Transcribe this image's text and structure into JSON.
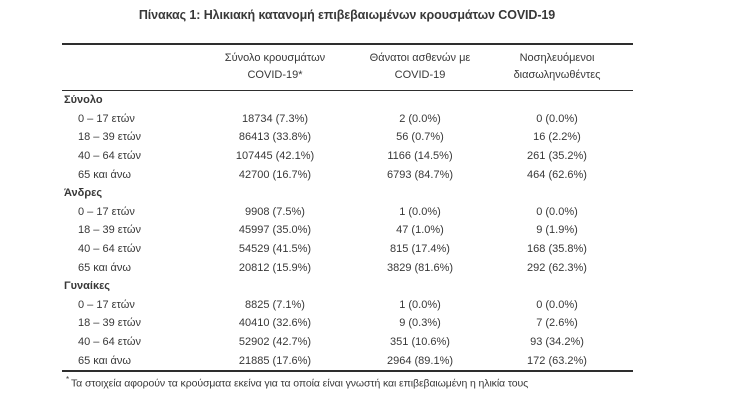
{
  "page": {
    "title": "Πίνακας 1: Ηλικιακή κατανομή επιβεβαιωμένων κρουσμάτων COVID-19"
  },
  "table": {
    "header": {
      "cases": {
        "line1": "Σύνολο κρουσμάτων",
        "line2": "COVID-19*"
      },
      "deaths": {
        "line1": "Θάνατοι ασθενών με",
        "line2": "COVID-19"
      },
      "intubated": {
        "line1": "Νοσηλευόμενοι",
        "line2": "διασωληνωθέντες"
      }
    },
    "sections": [
      {
        "label": "Σύνολο",
        "rows": [
          {
            "label": "0 – 17 ετών",
            "cases": "18734 (7.3%)",
            "deaths": "2 (0.0%)",
            "intubated": "0 (0.0%)"
          },
          {
            "label": "18 – 39 ετών",
            "cases": "86413 (33.8%)",
            "deaths": "56 (0.7%)",
            "intubated": "16 (2.2%)"
          },
          {
            "label": "40 – 64 ετών",
            "cases": "107445 (42.1%)",
            "deaths": "1166 (14.5%)",
            "intubated": "261 (35.2%)"
          },
          {
            "label": "65 και άνω",
            "cases": "42700 (16.7%)",
            "deaths": "6793 (84.7%)",
            "intubated": "464 (62.6%)"
          }
        ]
      },
      {
        "label": "Άνδρες",
        "rows": [
          {
            "label": "0 – 17 ετών",
            "cases": "9908 (7.5%)",
            "deaths": "1 (0.0%)",
            "intubated": "0 (0.0%)"
          },
          {
            "label": "18 – 39 ετών",
            "cases": "45997 (35.0%)",
            "deaths": "47 (1.0%)",
            "intubated": "9 (1.9%)"
          },
          {
            "label": "40 – 64 ετών",
            "cases": "54529 (41.5%)",
            "deaths": "815 (17.4%)",
            "intubated": "168 (35.8%)"
          },
          {
            "label": "65 και άνω",
            "cases": "20812 (15.9%)",
            "deaths": "3829 (81.6%)",
            "intubated": "292 (62.3%)"
          }
        ]
      },
      {
        "label": "Γυναίκες",
        "rows": [
          {
            "label": "0 – 17 ετών",
            "cases": "8825 (7.1%)",
            "deaths": "1 (0.0%)",
            "intubated": "0 (0.0%)"
          },
          {
            "label": "18 – 39 ετών",
            "cases": "40410 (32.6%)",
            "deaths": "9 (0.3%)",
            "intubated": "7 (2.6%)"
          },
          {
            "label": "40 – 64 ετών",
            "cases": "52902 (42.7%)",
            "deaths": "351 (10.6%)",
            "intubated": "93 (34.2%)"
          },
          {
            "label": "65 και άνω",
            "cases": "21885 (17.6%)",
            "deaths": "2964 (89.1%)",
            "intubated": "172 (63.2%)"
          }
        ]
      }
    ],
    "footnote_marker": "*",
    "footnote": "Τα στοιχεία αφορούν τα κρούσματα εκείνα για τα οποία είναι γνωστή και επιβεβαιωμένη η ηλικία τους"
  },
  "colors": {
    "text": "#383838",
    "rule": "#2e2e2e",
    "background": "#ffffff"
  }
}
